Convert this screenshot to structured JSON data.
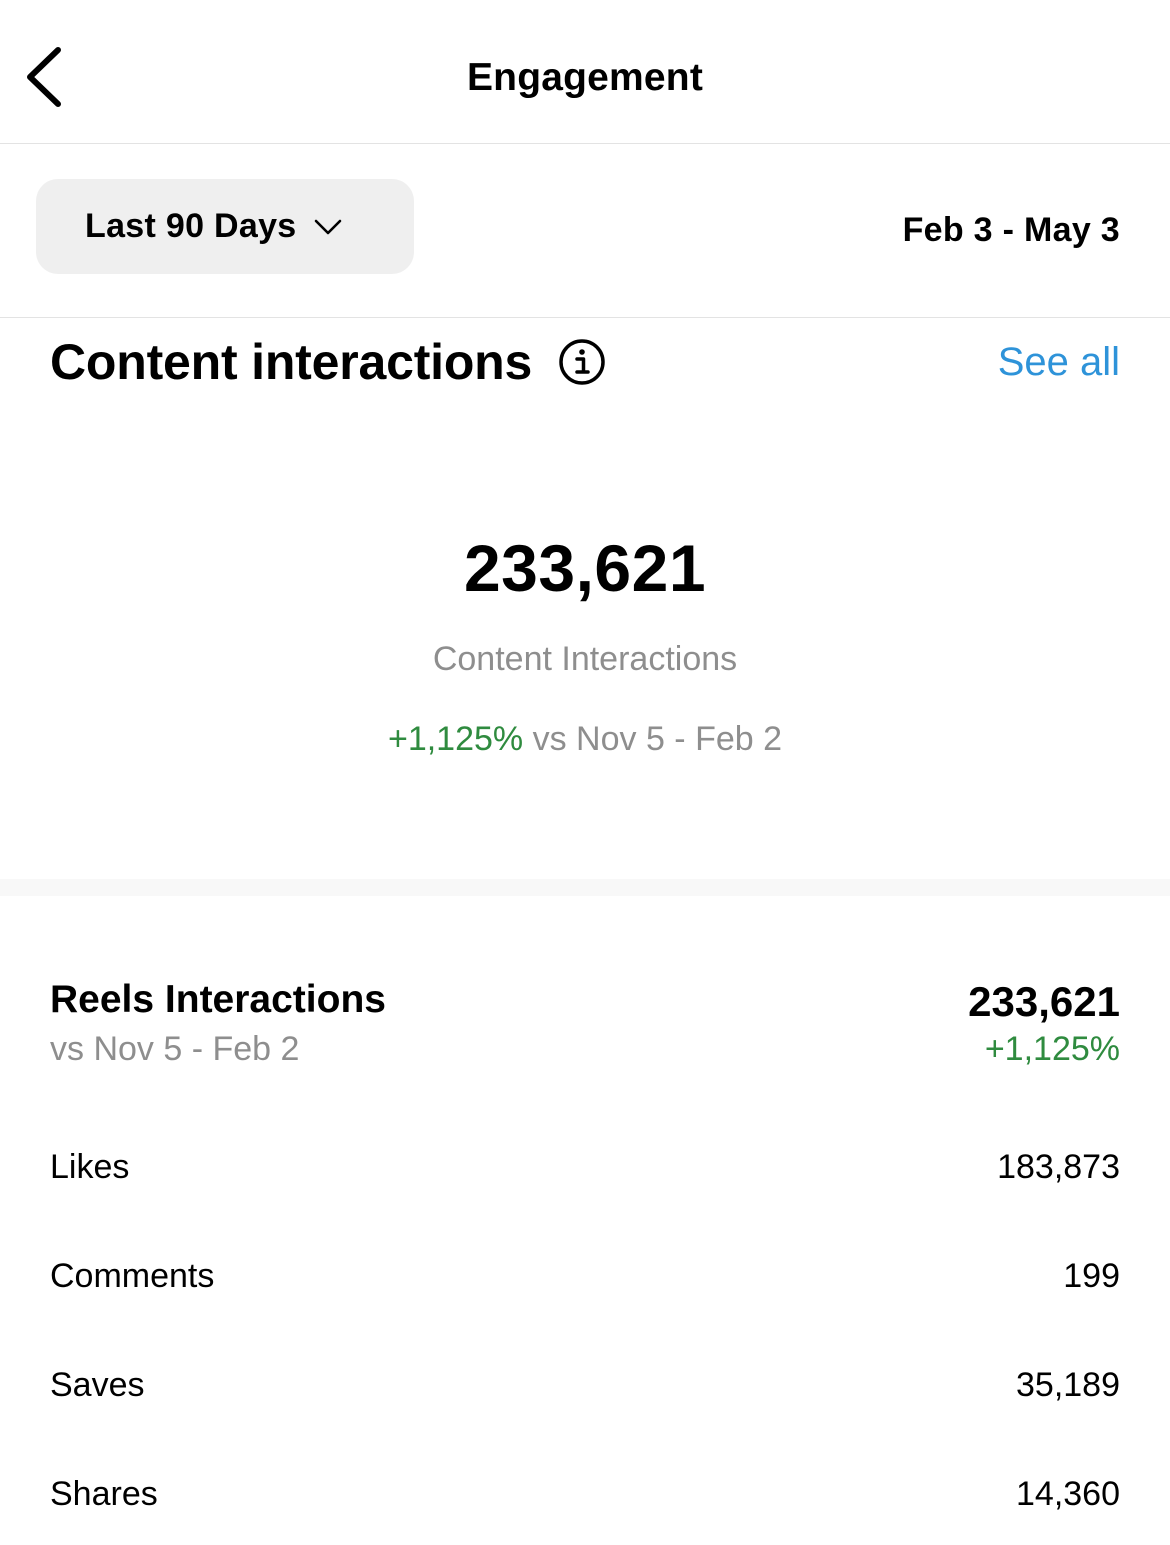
{
  "header": {
    "title": "Engagement",
    "back_icon": "chevron-left-icon"
  },
  "filter": {
    "range_label": "Last 90 Days",
    "dropdown_icon": "chevron-down-icon",
    "date_range": "Feb 3 - May 3"
  },
  "content_interactions": {
    "title": "Content interactions",
    "info_icon": "info-icon",
    "see_all": "See all",
    "total": "233,621",
    "total_label": "Content Interactions",
    "change": "+1,125%",
    "comparison": "vs Nov 5 - Feb 2"
  },
  "reels": {
    "title": "Reels Interactions",
    "comparison": "vs Nov 5 - Feb 2",
    "total": "233,621",
    "change": "+1,125%",
    "metrics": [
      {
        "label": "Likes",
        "value": "183,873"
      },
      {
        "label": "Comments",
        "value": "199"
      },
      {
        "label": "Saves",
        "value": "35,189"
      },
      {
        "label": "Shares",
        "value": "14,360"
      }
    ]
  },
  "colors": {
    "positive_change": "#2f8b3f",
    "link": "#2e93d9",
    "secondary_text": "#8e8e8e"
  }
}
